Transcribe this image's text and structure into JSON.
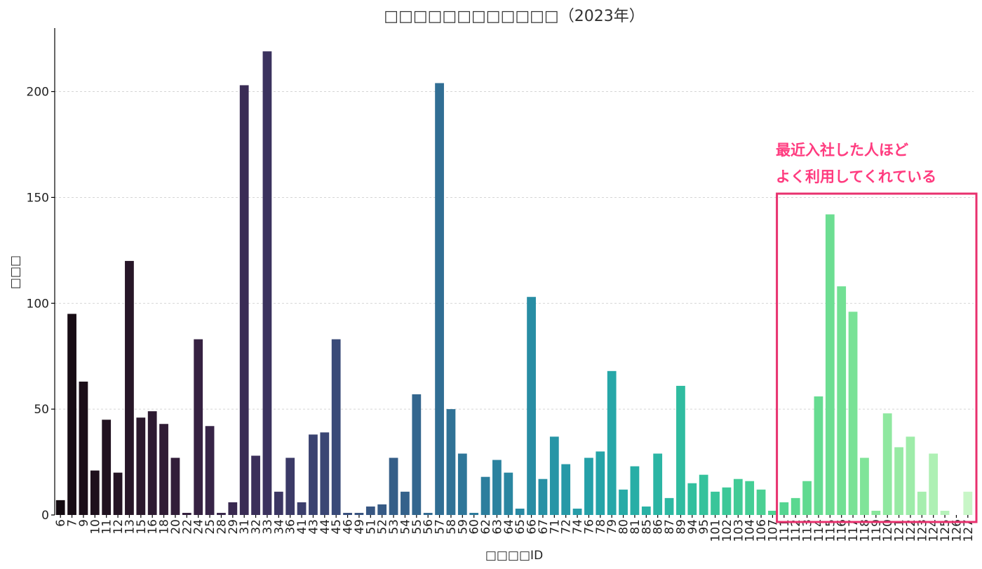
{
  "chart_data": {
    "type": "bar",
    "title": "□□□□□□□□□□□□（2023年）",
    "xlabel": "□□□□ID",
    "ylabel": "□□□",
    "ylim": [
      0,
      230
    ],
    "yticks": [
      0,
      50,
      100,
      150,
      200
    ],
    "grid": "y",
    "categories": [
      "6",
      "7",
      "9",
      "10",
      "11",
      "12",
      "13",
      "15",
      "16",
      "18",
      "20",
      "22",
      "24",
      "25",
      "28",
      "29",
      "31",
      "32",
      "33",
      "34",
      "36",
      "41",
      "43",
      "44",
      "45",
      "46",
      "49",
      "51",
      "52",
      "53",
      "54",
      "55",
      "56",
      "57",
      "58",
      "59",
      "60",
      "62",
      "63",
      "64",
      "65",
      "66",
      "67",
      "71",
      "72",
      "74",
      "76",
      "78",
      "79",
      "80",
      "81",
      "85",
      "86",
      "87",
      "89",
      "94",
      "95",
      "101",
      "102",
      "103",
      "104",
      "106",
      "107",
      "111",
      "112",
      "113",
      "114",
      "115",
      "116",
      "117",
      "118",
      "119",
      "120",
      "121",
      "122",
      "123",
      "124",
      "125",
      "126",
      "127"
    ],
    "values": [
      7,
      95,
      63,
      21,
      45,
      20,
      120,
      46,
      49,
      43,
      27,
      1,
      83,
      42,
      1,
      6,
      203,
      28,
      219,
      11,
      27,
      6,
      38,
      39,
      83,
      1,
      1,
      4,
      5,
      27,
      11,
      57,
      1,
      204,
      50,
      29,
      1,
      18,
      26,
      20,
      3,
      103,
      17,
      37,
      24,
      3,
      27,
      30,
      68,
      12,
      23,
      4,
      29,
      8,
      61,
      15,
      19,
      11,
      13,
      17,
      16,
      12,
      2,
      6,
      8,
      16,
      56,
      142,
      108,
      96,
      27,
      2,
      48,
      32,
      37,
      11,
      29,
      2,
      0,
      11
    ],
    "colors": [
      "#130a10",
      "#170c14",
      "#1b0e18",
      "#1e101c",
      "#211220",
      "#241424",
      "#271628",
      "#2a182c",
      "#2d1a31",
      "#301c35",
      "#321e39",
      "#34203e",
      "#362242",
      "#372447",
      "#38264b",
      "#392950",
      "#3a2c55",
      "#3b2f5a",
      "#3b325e",
      "#3b3663",
      "#3b3a67",
      "#3b3e6c",
      "#3a4270",
      "#3a4674",
      "#394a78",
      "#384e7c",
      "#38527f",
      "#375682",
      "#365a85",
      "#355e88",
      "#34628b",
      "#33668e",
      "#326a91",
      "#316e94",
      "#307296",
      "#2e7699",
      "#2d7a9b",
      "#2c7e9d",
      "#2b829f",
      "#2a86a1",
      "#2989a3",
      "#288da4",
      "#2791a5",
      "#2795a6",
      "#2699a7",
      "#269ca8",
      "#25a0a8",
      "#25a4a8",
      "#26a7a8",
      "#27aba7",
      "#28aea6",
      "#29b2a5",
      "#2bb5a4",
      "#2db8a2",
      "#2fbca0",
      "#32bf9e",
      "#35c29c",
      "#39c59a",
      "#3cc898",
      "#41cb96",
      "#45ce95",
      "#4ad093",
      "#4fd392",
      "#55d591",
      "#5ad890",
      "#60da90",
      "#66dc91",
      "#6cde92",
      "#72e094",
      "#79e296",
      "#80e499",
      "#88e69c",
      "#8fe8a0",
      "#97eaa4",
      "#9eeca9",
      "#a6eeae",
      "#aef0b4",
      "#b6f2ba",
      "#bff4c0",
      "#c8f6c7"
    ],
    "annotation": {
      "lines": [
        "最近入社した人ほど",
        "よく利用してくれている"
      ],
      "highlight_from_category": "111",
      "highlight_to_category": "127",
      "color": "#e8316e"
    }
  }
}
